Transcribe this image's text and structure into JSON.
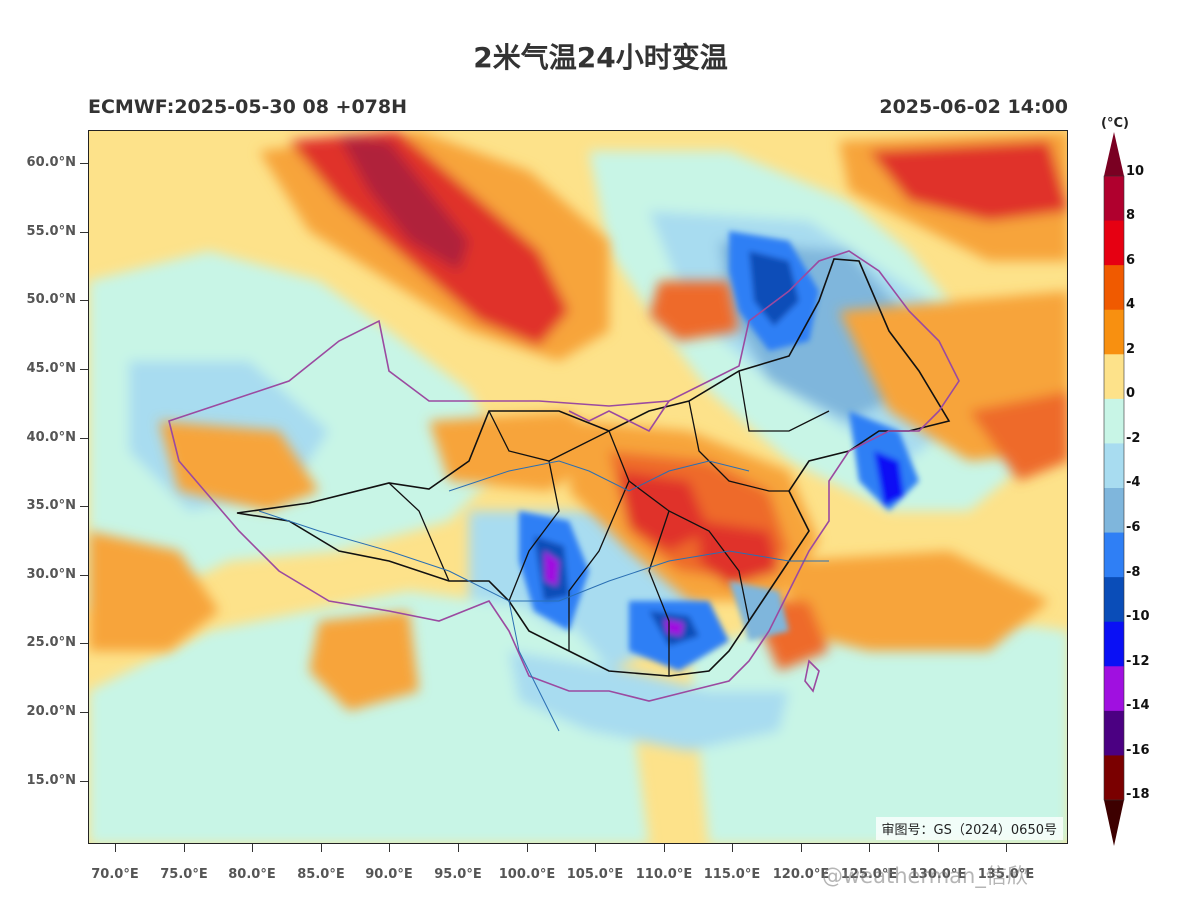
{
  "title": "2米气温24小时变温",
  "model_run": "ECMWF:2025-05-30 08 +078H",
  "valid_time": "2025-06-02 14:00",
  "lat_labels": [
    "60.0°N",
    "55.0°N",
    "50.0°N",
    "45.0°N",
    "40.0°N",
    "35.0°N",
    "30.0°N",
    "25.0°N",
    "20.0°N",
    "15.0°N"
  ],
  "lon_labels": [
    "70.0°E",
    "75.0°E",
    "80.0°E",
    "85.0°E",
    "90.0°E",
    "95.0°E",
    "100.0°E",
    "105.0°E",
    "110.0°E",
    "115.0°E",
    "120.0°E",
    "125.0°E",
    "130.0°E",
    "135.0°E"
  ],
  "approval_number": "审图号：GS（2024）0650号",
  "colorbar": {
    "unit": "(°C)",
    "labels": [
      "10",
      "8",
      "6",
      "4",
      "2",
      "0",
      "-2",
      "-4",
      "-6",
      "-8",
      "-10",
      "-12",
      "-14",
      "-16",
      "-18"
    ],
    "colors": [
      "#b0002e",
      "#e60012",
      "#f05a00",
      "#f89010",
      "#fde28a",
      "#c8f5e6",
      "#a8dcf0",
      "#7fb6dc",
      "#2f7ff5",
      "#0a4db8",
      "#0a10f5",
      "#a010e0",
      "#4b0082",
      "#7a0000"
    ],
    "top_arrow_color": "#7a0022",
    "bottom_arrow_color": "#3d0000"
  },
  "field_colors": {
    "warm_0_2": "#fde28a",
    "warm_2_4": "#f7a43a",
    "warm_4_6": "#ee6a2a",
    "warm_6_8": "#e0302c",
    "warm_8_10": "#b0203a",
    "cool_0_2": "#c8f5e6",
    "cool_2_4": "#a8dcf0",
    "cool_4_6": "#7fb6dc",
    "cool_6_8": "#2f7ff5",
    "cool_8_10": "#0a4db8",
    "cool_10_12": "#0a10f5",
    "cool_12_14": "#a010e0"
  },
  "watermark": "@weatherman_信欣"
}
